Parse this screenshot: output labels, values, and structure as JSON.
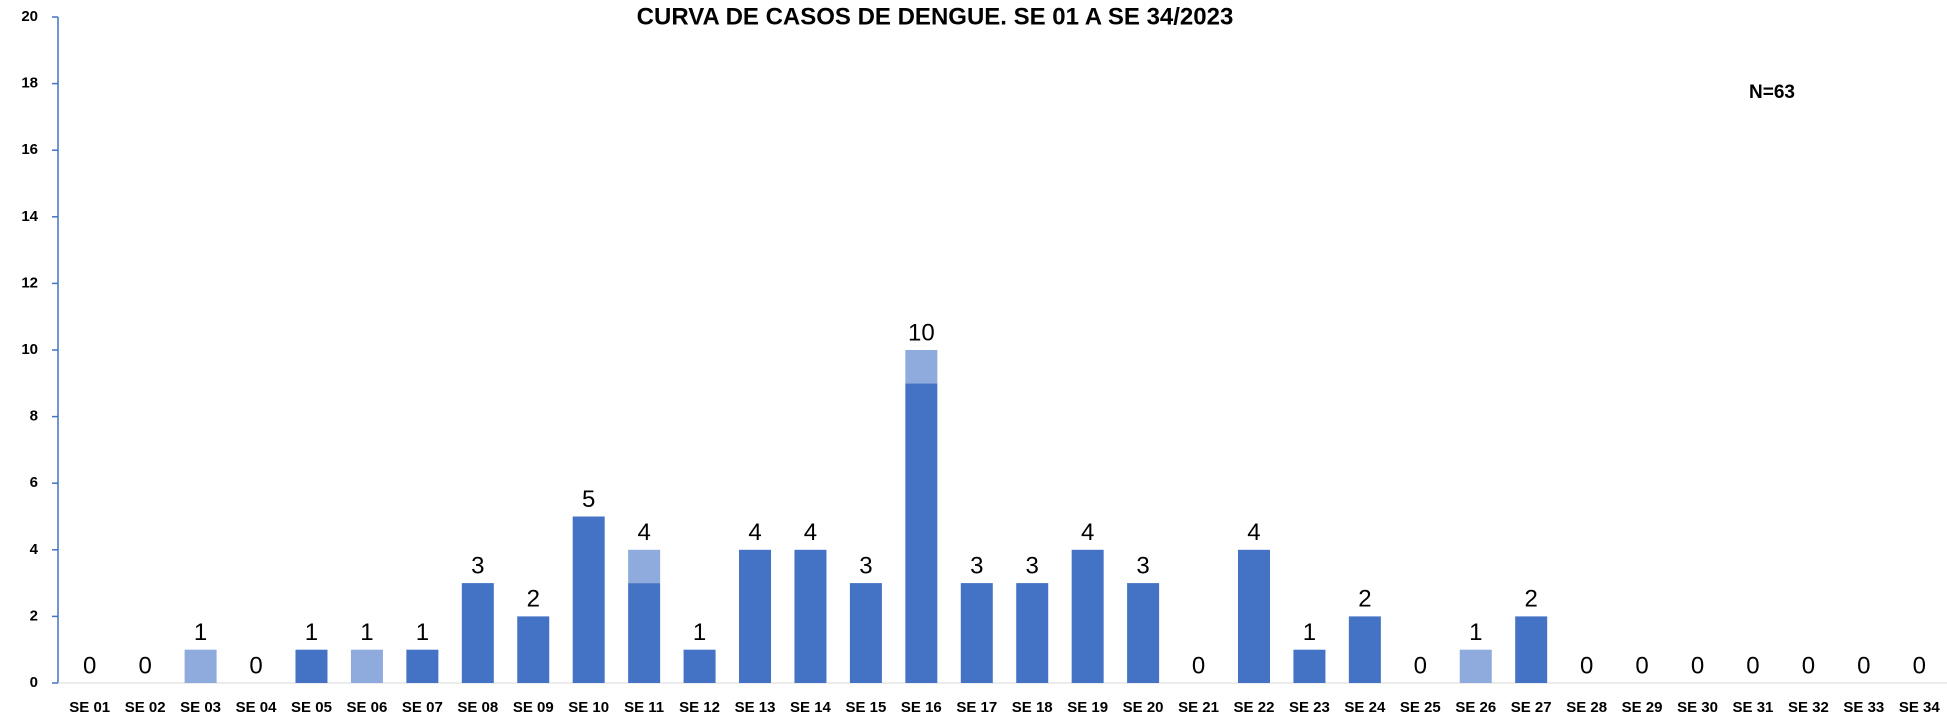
{
  "chart_data": {
    "type": "stacked_bar",
    "title": "CURVA DE CASOS DE DENGUE. SE 01 A SE 34/2023",
    "annotation": "N=63",
    "categories": [
      "SE 01",
      "SE 02",
      "SE 03",
      "SE 04",
      "SE 05",
      "SE 06",
      "SE 07",
      "SE 08",
      "SE 09",
      "SE 10",
      "SE 11",
      "SE 12",
      "SE 13",
      "SE 14",
      "SE 15",
      "SE 16",
      "SE 17",
      "SE 18",
      "SE 19",
      "SE 20",
      "SE 21",
      "SE 22",
      "SE 23",
      "SE 24",
      "SE 25",
      "SE 26",
      "SE 27",
      "SE 28",
      "SE 29",
      "SE 30",
      "SE 31",
      "SE 32",
      "SE 33",
      "SE 34"
    ],
    "series": [
      {
        "color": "#4472c4",
        "values": [
          0,
          0,
          0,
          0,
          1,
          0,
          1,
          3,
          2,
          5,
          3,
          1,
          4,
          4,
          3,
          9,
          3,
          3,
          4,
          3,
          0,
          4,
          1,
          2,
          0,
          0,
          2,
          0,
          0,
          0,
          0,
          0,
          0,
          0
        ]
      },
      {
        "color": "#8faadc",
        "values": [
          0,
          0,
          1,
          0,
          0,
          1,
          0,
          0,
          0,
          0,
          1,
          0,
          0,
          0,
          0,
          1,
          0,
          0,
          0,
          0,
          0,
          0,
          0,
          0,
          0,
          1,
          0,
          0,
          0,
          0,
          0,
          0,
          0,
          0
        ]
      }
    ],
    "totals": [
      0,
      0,
      1,
      0,
      1,
      1,
      1,
      3,
      2,
      5,
      4,
      1,
      4,
      4,
      3,
      10,
      3,
      3,
      4,
      3,
      0,
      4,
      1,
      2,
      0,
      1,
      2,
      0,
      0,
      0,
      0,
      0,
      0,
      0
    ],
    "ylim": [
      0,
      20
    ],
    "yticks": [
      0,
      2,
      4,
      6,
      8,
      10,
      12,
      14,
      16,
      18,
      20
    ],
    "grid": false
  }
}
